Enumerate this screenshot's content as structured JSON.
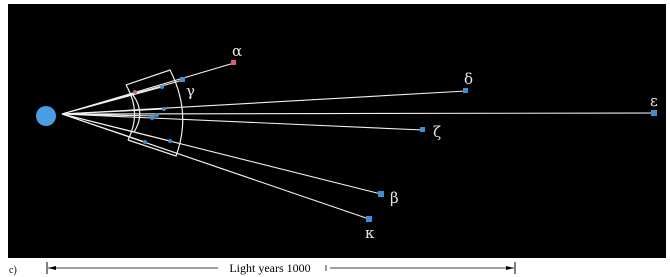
{
  "panel_label": "c)",
  "stars": [
    {
      "label": "α"
    },
    {
      "label": "γ"
    },
    {
      "label": "δ"
    },
    {
      "label": "ε"
    },
    {
      "label": "ζ"
    },
    {
      "label": "β"
    },
    {
      "label": "κ"
    }
  ],
  "scale_bar": {
    "label": "Light years 1000"
  }
}
